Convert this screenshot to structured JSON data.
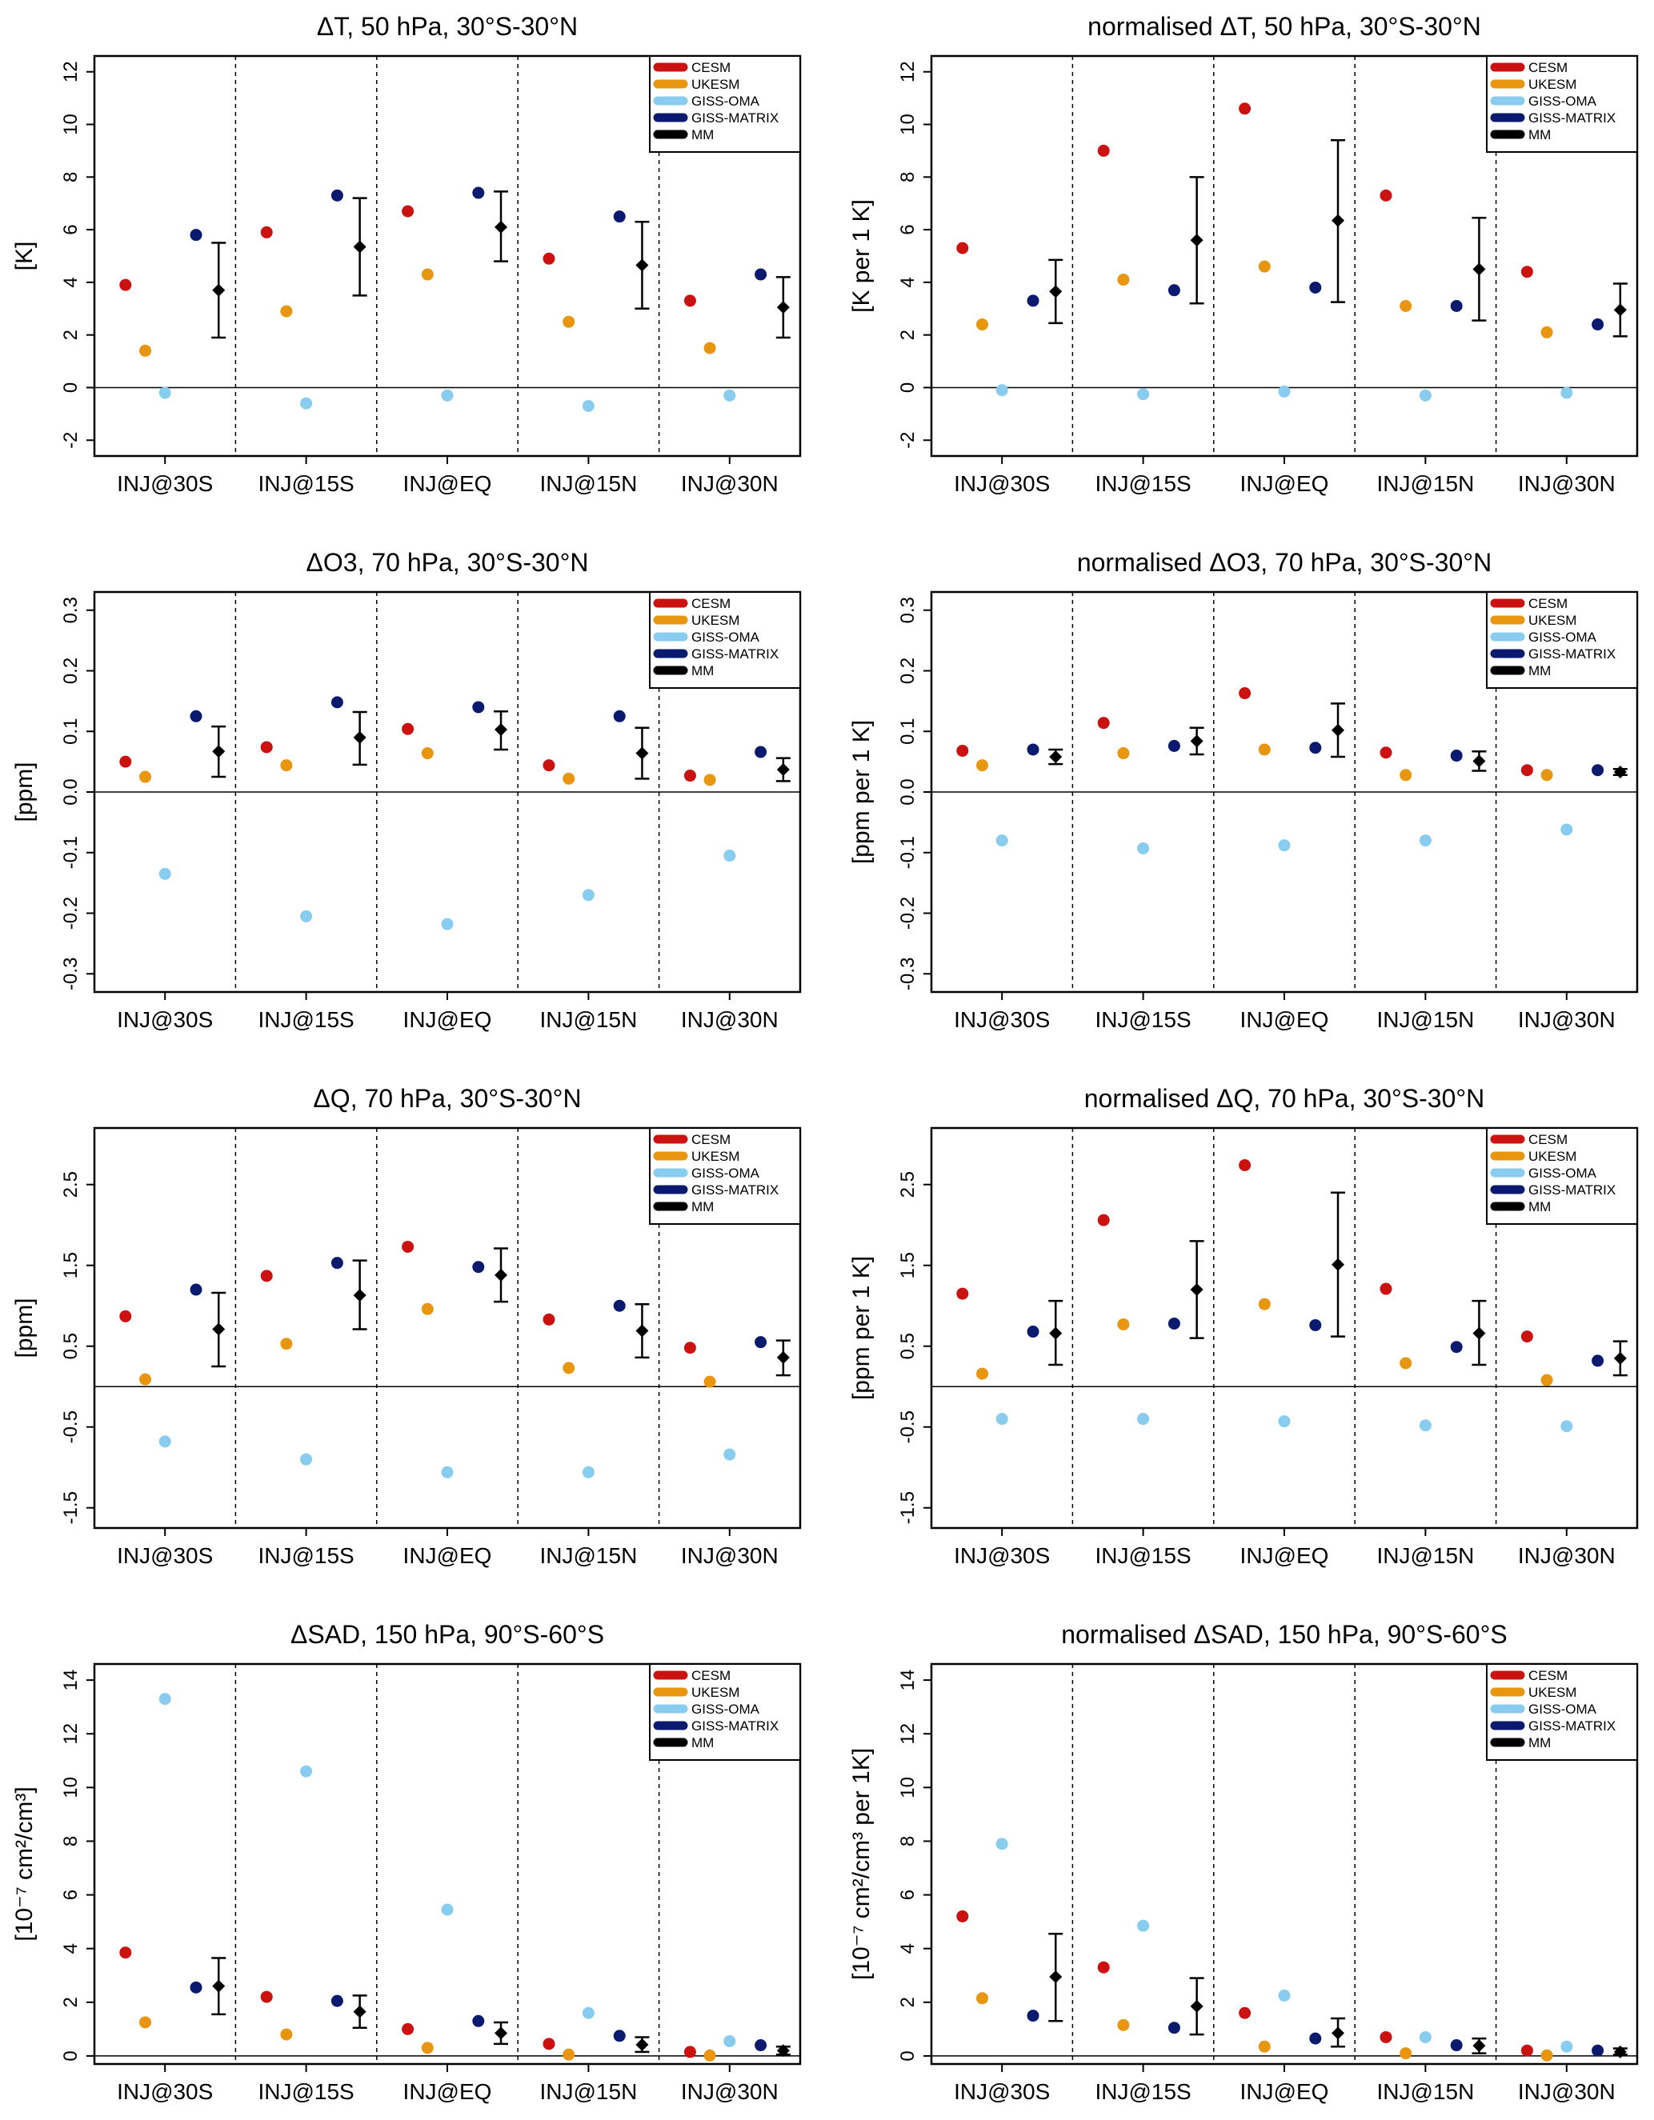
{
  "figure_title": "",
  "panel_order": [
    "row1-left",
    "row1-right",
    "row2-left",
    "row2-right",
    "row3-left",
    "row3-right",
    "row4-left",
    "row4-right"
  ],
  "colors": {
    "CESM": "#cc1111",
    "UKESM": "#e8960f",
    "GISS-OMA": "#88ccf0",
    "GISS-MATRIX": "#0a1a6e",
    "MM": "#000000"
  },
  "chart_data": [
    {
      "id": "dT",
      "type": "scatter",
      "title": "ΔT, 50 hPa, 30°S-30°N",
      "ylabel": "[K]",
      "ylim": [
        -2.6,
        12.6
      ],
      "yticks": [
        -2,
        0,
        2,
        4,
        6,
        8,
        10,
        12
      ],
      "ytick_labels": [
        "-2",
        "0",
        "2",
        "4",
        "6",
        "8",
        "10",
        "12"
      ],
      "categories": [
        "INJ@30S",
        "INJ@15S",
        "INJ@EQ",
        "INJ@15N",
        "INJ@30N"
      ],
      "legend": [
        "CESM",
        "UKESM",
        "GISS-OMA",
        "GISS-MATRIX",
        "MM"
      ],
      "legend_position": "top-right",
      "series": [
        {
          "name": "CESM",
          "values": [
            3.9,
            5.9,
            6.7,
            4.9,
            3.3
          ]
        },
        {
          "name": "UKESM",
          "values": [
            1.4,
            2.9,
            4.3,
            2.5,
            1.5
          ]
        },
        {
          "name": "GISS-OMA",
          "values": [
            -0.2,
            -0.6,
            -0.3,
            -0.7,
            -0.3
          ]
        },
        {
          "name": "GISS-MATRIX",
          "values": [
            5.8,
            7.3,
            7.4,
            6.5,
            4.3
          ]
        }
      ],
      "mm": [
        {
          "mean": 3.7,
          "low": 1.9,
          "high": 5.5
        },
        {
          "mean": 5.35,
          "low": 3.5,
          "high": 7.2
        },
        {
          "mean": 6.1,
          "low": 4.8,
          "high": 7.45
        },
        {
          "mean": 4.65,
          "low": 3.0,
          "high": 6.3
        },
        {
          "mean": 3.05,
          "low": 1.9,
          "high": 4.2
        }
      ]
    },
    {
      "id": "ndT",
      "type": "scatter",
      "title": "normalised ΔT, 50 hPa, 30°S-30°N",
      "ylabel": "[K per 1 K]",
      "ylim": [
        -2.6,
        12.6
      ],
      "yticks": [
        -2,
        0,
        2,
        4,
        6,
        8,
        10,
        12
      ],
      "ytick_labels": [
        "-2",
        "0",
        "2",
        "4",
        "6",
        "8",
        "10",
        "12"
      ],
      "categories": [
        "INJ@30S",
        "INJ@15S",
        "INJ@EQ",
        "INJ@15N",
        "INJ@30N"
      ],
      "legend": [
        "CESM",
        "UKESM",
        "GISS-OMA",
        "GISS-MATRIX",
        "MM"
      ],
      "legend_position": "top-right",
      "series": [
        {
          "name": "CESM",
          "values": [
            5.3,
            9.0,
            10.6,
            7.3,
            4.4
          ]
        },
        {
          "name": "UKESM",
          "values": [
            2.4,
            4.1,
            4.6,
            3.1,
            2.1
          ]
        },
        {
          "name": "GISS-OMA",
          "values": [
            -0.1,
            -0.25,
            -0.15,
            -0.3,
            -0.2
          ]
        },
        {
          "name": "GISS-MATRIX",
          "values": [
            3.3,
            3.7,
            3.8,
            3.1,
            2.4
          ]
        }
      ],
      "mm": [
        {
          "mean": 3.65,
          "low": 2.45,
          "high": 4.85
        },
        {
          "mean": 5.6,
          "low": 3.2,
          "high": 8.0
        },
        {
          "mean": 6.35,
          "low": 3.25,
          "high": 9.4
        },
        {
          "mean": 4.5,
          "low": 2.55,
          "high": 6.45
        },
        {
          "mean": 2.95,
          "low": 1.95,
          "high": 3.95
        }
      ]
    },
    {
      "id": "dO3",
      "type": "scatter",
      "title": "ΔO3, 70 hPa, 30°S-30°N",
      "ylabel": "[ppm]",
      "ylim": [
        -0.33,
        0.33
      ],
      "yticks": [
        -0.3,
        -0.2,
        -0.1,
        0.0,
        0.1,
        0.2,
        0.3
      ],
      "ytick_labels": [
        "-0.3",
        "-0.2",
        "-0.1",
        "0.0",
        "0.1",
        "0.2",
        "0.3"
      ],
      "categories": [
        "INJ@30S",
        "INJ@15S",
        "INJ@EQ",
        "INJ@15N",
        "INJ@30N"
      ],
      "legend": [
        "CESM",
        "UKESM",
        "GISS-OMA",
        "GISS-MATRIX",
        "MM"
      ],
      "legend_position": "top-right",
      "series": [
        {
          "name": "CESM",
          "values": [
            0.05,
            0.074,
            0.104,
            0.044,
            0.027
          ]
        },
        {
          "name": "UKESM",
          "values": [
            0.025,
            0.044,
            0.064,
            0.022,
            0.02
          ]
        },
        {
          "name": "GISS-OMA",
          "values": [
            -0.135,
            -0.205,
            -0.218,
            -0.17,
            -0.105
          ]
        },
        {
          "name": "GISS-MATRIX",
          "values": [
            0.125,
            0.148,
            0.14,
            0.125,
            0.066
          ]
        }
      ],
      "mm": [
        {
          "mean": 0.067,
          "low": 0.025,
          "high": 0.108
        },
        {
          "mean": 0.09,
          "low": 0.045,
          "high": 0.132
        },
        {
          "mean": 0.103,
          "low": 0.07,
          "high": 0.133
        },
        {
          "mean": 0.064,
          "low": 0.022,
          "high": 0.106
        },
        {
          "mean": 0.037,
          "low": 0.018,
          "high": 0.056
        }
      ]
    },
    {
      "id": "ndO3",
      "type": "scatter",
      "title": "normalised ΔO3, 70 hPa, 30°S-30°N",
      "ylabel": "[ppm per 1 K]",
      "ylim": [
        -0.33,
        0.33
      ],
      "yticks": [
        -0.3,
        -0.2,
        -0.1,
        0.0,
        0.1,
        0.2,
        0.3
      ],
      "ytick_labels": [
        "-0.3",
        "-0.2",
        "-0.1",
        "0.0",
        "0.1",
        "0.2",
        "0.3"
      ],
      "categories": [
        "INJ@30S",
        "INJ@15S",
        "INJ@EQ",
        "INJ@15N",
        "INJ@30N"
      ],
      "legend": [
        "CESM",
        "UKESM",
        "GISS-OMA",
        "GISS-MATRIX",
        "MM"
      ],
      "legend_position": "top-right",
      "series": [
        {
          "name": "CESM",
          "values": [
            0.068,
            0.114,
            0.163,
            0.065,
            0.036
          ]
        },
        {
          "name": "UKESM",
          "values": [
            0.044,
            0.064,
            0.07,
            0.028,
            0.028
          ]
        },
        {
          "name": "GISS-OMA",
          "values": [
            -0.08,
            -0.093,
            -0.088,
            -0.08,
            -0.062
          ]
        },
        {
          "name": "GISS-MATRIX",
          "values": [
            0.07,
            0.076,
            0.073,
            0.06,
            0.036
          ]
        }
      ],
      "mm": [
        {
          "mean": 0.058,
          "low": 0.046,
          "high": 0.07
        },
        {
          "mean": 0.084,
          "low": 0.062,
          "high": 0.106
        },
        {
          "mean": 0.102,
          "low": 0.058,
          "high": 0.146
        },
        {
          "mean": 0.051,
          "low": 0.035,
          "high": 0.067
        },
        {
          "mean": 0.033,
          "low": 0.028,
          "high": 0.038
        }
      ]
    },
    {
      "id": "dQ",
      "type": "scatter",
      "title": "ΔQ, 70 hPa, 30°S-30°N",
      "ylabel": "[ppm]",
      "ylim": [
        -1.75,
        3.2
      ],
      "yticks": [
        -1.5,
        -0.5,
        0.5,
        1.5,
        2.5
      ],
      "ytick_labels": [
        "-1.5",
        "-0.5",
        "0.5",
        "1.5",
        "2.5"
      ],
      "categories": [
        "INJ@30S",
        "INJ@15S",
        "INJ@EQ",
        "INJ@15N",
        "INJ@30N"
      ],
      "legend": [
        "CESM",
        "UKESM",
        "GISS-OMA",
        "GISS-MATRIX",
        "MM"
      ],
      "legend_position": "top-right",
      "series": [
        {
          "name": "CESM",
          "values": [
            0.87,
            1.37,
            1.73,
            0.83,
            0.48
          ]
        },
        {
          "name": "UKESM",
          "values": [
            0.09,
            0.53,
            0.96,
            0.23,
            0.06
          ]
        },
        {
          "name": "GISS-OMA",
          "values": [
            -0.68,
            -0.9,
            -1.06,
            -1.06,
            -0.84
          ]
        },
        {
          "name": "GISS-MATRIX",
          "values": [
            1.2,
            1.53,
            1.48,
            1.0,
            0.55
          ]
        }
      ],
      "mm": [
        {
          "mean": 0.71,
          "low": 0.25,
          "high": 1.16
        },
        {
          "mean": 1.13,
          "low": 0.71,
          "high": 1.56
        },
        {
          "mean": 1.38,
          "low": 1.05,
          "high": 1.71
        },
        {
          "mean": 0.69,
          "low": 0.36,
          "high": 1.02
        },
        {
          "mean": 0.36,
          "low": 0.14,
          "high": 0.57
        }
      ]
    },
    {
      "id": "ndQ",
      "type": "scatter",
      "title": "normalised ΔQ, 70 hPa, 30°S-30°N",
      "ylabel": "[ppm per 1 K]",
      "ylim": [
        -1.75,
        3.2
      ],
      "yticks": [
        -1.5,
        -0.5,
        0.5,
        1.5,
        2.5
      ],
      "ytick_labels": [
        "-1.5",
        "-0.5",
        "0.5",
        "1.5",
        "2.5"
      ],
      "categories": [
        "INJ@30S",
        "INJ@15S",
        "INJ@EQ",
        "INJ@15N",
        "INJ@30N"
      ],
      "legend": [
        "CESM",
        "UKESM",
        "GISS-OMA",
        "GISS-MATRIX",
        "MM"
      ],
      "legend_position": "top-right",
      "series": [
        {
          "name": "CESM",
          "values": [
            1.15,
            2.06,
            2.74,
            1.21,
            0.62
          ]
        },
        {
          "name": "UKESM",
          "values": [
            0.16,
            0.77,
            1.02,
            0.29,
            0.08
          ]
        },
        {
          "name": "GISS-OMA",
          "values": [
            -0.4,
            -0.4,
            -0.43,
            -0.48,
            -0.49
          ]
        },
        {
          "name": "GISS-MATRIX",
          "values": [
            0.68,
            0.78,
            0.76,
            0.49,
            0.32
          ]
        }
      ],
      "mm": [
        {
          "mean": 0.66,
          "low": 0.27,
          "high": 1.06
        },
        {
          "mean": 1.2,
          "low": 0.6,
          "high": 1.8
        },
        {
          "mean": 1.51,
          "low": 0.62,
          "high": 2.4
        },
        {
          "mean": 0.66,
          "low": 0.27,
          "high": 1.06
        },
        {
          "mean": 0.35,
          "low": 0.14,
          "high": 0.56
        }
      ]
    },
    {
      "id": "dSAD",
      "type": "scatter",
      "title": "ΔSAD, 150 hPa, 90°S-60°S",
      "ylabel": "[10⁻⁷ cm²/cm³]",
      "ylim": [
        -0.3,
        14.6
      ],
      "yticks": [
        0,
        2,
        4,
        6,
        8,
        10,
        12,
        14
      ],
      "ytick_labels": [
        "0",
        "2",
        "4",
        "6",
        "8",
        "10",
        "12",
        "14"
      ],
      "categories": [
        "INJ@30S",
        "INJ@15S",
        "INJ@EQ",
        "INJ@15N",
        "INJ@30N"
      ],
      "legend": [
        "CESM",
        "UKESM",
        "GISS-OMA",
        "GISS-MATRIX",
        "MM"
      ],
      "legend_position": "top-right",
      "series": [
        {
          "name": "CESM",
          "values": [
            3.85,
            2.2,
            1.0,
            0.45,
            0.15
          ]
        },
        {
          "name": "UKESM",
          "values": [
            1.25,
            0.8,
            0.3,
            0.05,
            0.02
          ]
        },
        {
          "name": "GISS-OMA",
          "values": [
            13.3,
            10.6,
            5.45,
            1.6,
            0.55
          ]
        },
        {
          "name": "GISS-MATRIX",
          "values": [
            2.55,
            2.05,
            1.3,
            0.75,
            0.4
          ]
        }
      ],
      "mm": [
        {
          "mean": 2.6,
          "low": 1.55,
          "high": 3.65
        },
        {
          "mean": 1.65,
          "low": 1.05,
          "high": 2.25
        },
        {
          "mean": 0.85,
          "low": 0.45,
          "high": 1.25
        },
        {
          "mean": 0.42,
          "low": 0.15,
          "high": 0.7
        },
        {
          "mean": 0.2,
          "low": 0.05,
          "high": 0.35
        }
      ]
    },
    {
      "id": "ndSAD",
      "type": "scatter",
      "title": "normalised ΔSAD, 150 hPa, 90°S-60°S",
      "ylabel": "[10⁻⁷ cm²/cm³ per 1K]",
      "ylim": [
        -0.3,
        14.6
      ],
      "yticks": [
        0,
        2,
        4,
        6,
        8,
        10,
        12,
        14
      ],
      "ytick_labels": [
        "0",
        "2",
        "4",
        "6",
        "8",
        "10",
        "12",
        "14"
      ],
      "categories": [
        "INJ@30S",
        "INJ@15S",
        "INJ@EQ",
        "INJ@15N",
        "INJ@30N"
      ],
      "legend": [
        "CESM",
        "UKESM",
        "GISS-OMA",
        "GISS-MATRIX",
        "MM"
      ],
      "legend_position": "top-right",
      "series": [
        {
          "name": "CESM",
          "values": [
            5.2,
            3.3,
            1.6,
            0.7,
            0.2
          ]
        },
        {
          "name": "UKESM",
          "values": [
            2.15,
            1.15,
            0.35,
            0.1,
            0.02
          ]
        },
        {
          "name": "GISS-OMA",
          "values": [
            7.9,
            4.85,
            2.25,
            0.7,
            0.35
          ]
        },
        {
          "name": "GISS-MATRIX",
          "values": [
            1.5,
            1.05,
            0.65,
            0.4,
            0.2
          ]
        }
      ],
      "mm": [
        {
          "mean": 2.95,
          "low": 1.3,
          "high": 4.55
        },
        {
          "mean": 1.85,
          "low": 0.8,
          "high": 2.9
        },
        {
          "mean": 0.85,
          "low": 0.35,
          "high": 1.4
        },
        {
          "mean": 0.38,
          "low": 0.1,
          "high": 0.65
        },
        {
          "mean": 0.15,
          "low": 0.05,
          "high": 0.28
        }
      ]
    }
  ]
}
